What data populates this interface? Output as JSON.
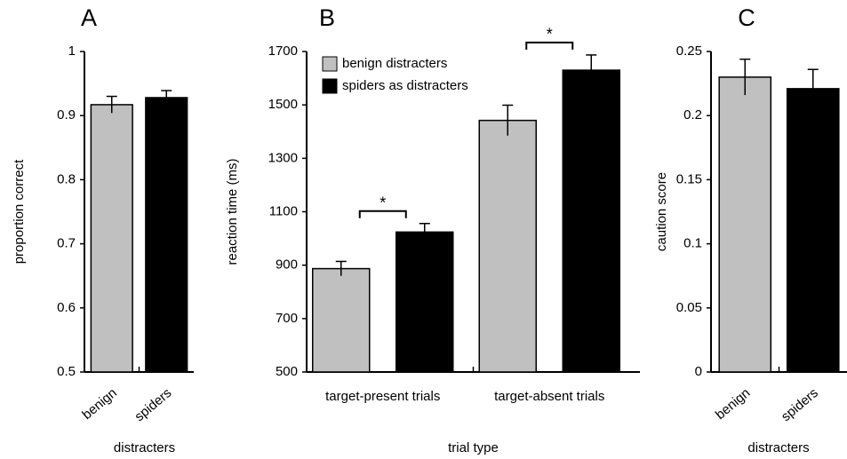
{
  "chart_data": [
    {
      "type": "bar",
      "panel": "A",
      "ylabel": "proportion correct",
      "xlabel": "distracters",
      "categories": [
        "benign",
        "spiders"
      ],
      "values": [
        0.917,
        0.928
      ],
      "errors": [
        0.013,
        0.011
      ],
      "colors": [
        "#c0c0c0",
        "#000000"
      ],
      "ylim": [
        0.5,
        1
      ],
      "yticks": [
        0.5,
        0.6,
        0.7,
        0.8,
        0.9,
        1
      ]
    },
    {
      "type": "grouped_bar",
      "panel": "B",
      "ylabel": "reaction time (ms)",
      "xlabel": "trial type",
      "categories": [
        "target-present trials",
        "target-absent trials"
      ],
      "series": [
        {
          "name": "benign distracters",
          "color": "#c0c0c0",
          "values": [
            887,
            1442
          ],
          "errors": [
            27,
            57
          ]
        },
        {
          "name": "spiders as distracters",
          "color": "#000000",
          "values": [
            1024,
            1630
          ],
          "errors": [
            32,
            57
          ]
        }
      ],
      "significance": [
        "*",
        "*"
      ],
      "legend": "top-left",
      "ylim": [
        500,
        1700
      ],
      "yticks": [
        500,
        700,
        900,
        1100,
        1300,
        1500,
        1700
      ]
    },
    {
      "type": "bar",
      "panel": "C",
      "ylabel": "caution score",
      "xlabel": "distracters",
      "categories": [
        "benign",
        "spiders"
      ],
      "values": [
        0.23,
        0.221
      ],
      "errors": [
        0.014,
        0.015
      ],
      "colors": [
        "#c0c0c0",
        "#000000"
      ],
      "ylim": [
        0,
        0.25
      ],
      "yticks": [
        0,
        0.05,
        0.1,
        0.15,
        0.2,
        0.25
      ]
    }
  ]
}
